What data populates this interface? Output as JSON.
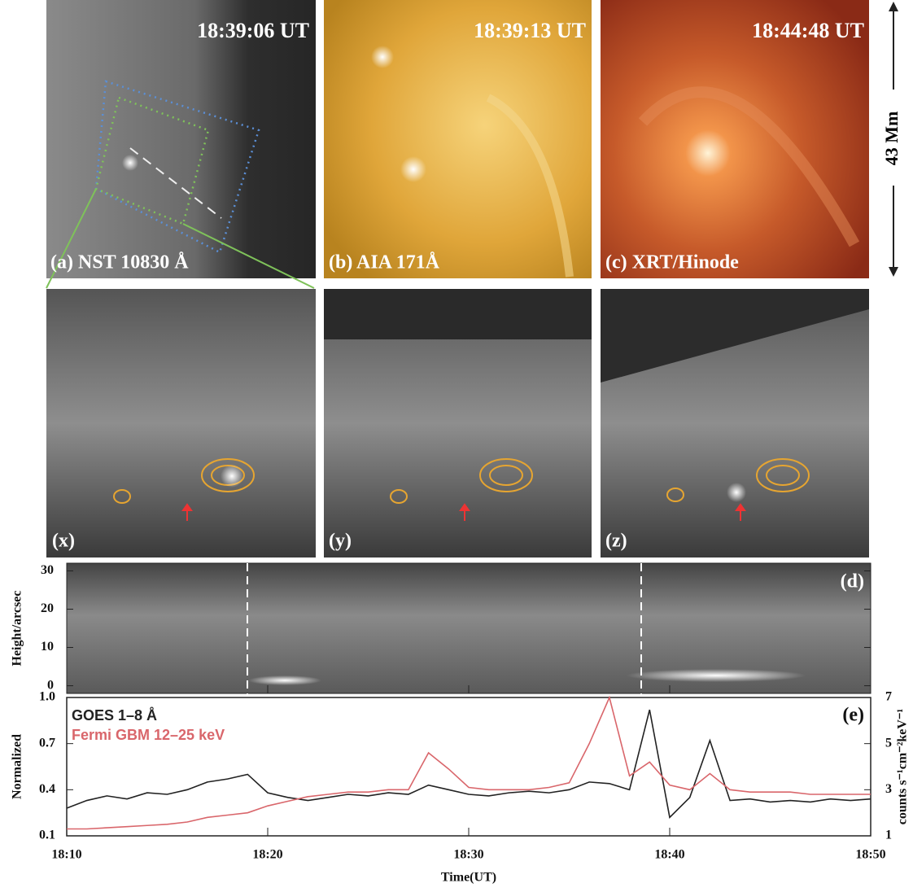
{
  "top_panels": [
    {
      "time": "18:39:06 UT",
      "label": "(a) NST 10830 Å"
    },
    {
      "time": "18:39:13 UT",
      "label": "(b) AIA 171Å"
    },
    {
      "time": "18:44:48 UT",
      "label": "(c) XRT/Hinode"
    }
  ],
  "scale_label": "43 Mm",
  "bottom_panels": [
    {
      "label": "(x)"
    },
    {
      "label": "(y)"
    },
    {
      "label": "(z)"
    }
  ],
  "panel_d": {
    "label": "(d)",
    "y_label": "Height/arcsec",
    "ylim": [
      -2,
      32
    ],
    "yticks": [
      0,
      10,
      20,
      30
    ]
  },
  "chart_data": {
    "type": "line",
    "label": "(e)",
    "x_label": "Time(UT)",
    "y_label": "Normalized",
    "y2_label": "counts s⁻¹cm⁻²keV⁻¹",
    "x": [
      "18:10",
      "18:11",
      "18:12",
      "18:13",
      "18:14",
      "18:15",
      "18:16",
      "18:17",
      "18:18",
      "18:19",
      "18:20",
      "18:21",
      "18:22",
      "18:23",
      "18:24",
      "18:25",
      "18:26",
      "18:27",
      "18:28",
      "18:29",
      "18:30",
      "18:31",
      "18:32",
      "18:33",
      "18:34",
      "18:35",
      "18:36",
      "18:37",
      "18:38",
      "18:39",
      "18:40",
      "18:41",
      "18:42",
      "18:43",
      "18:44",
      "18:45",
      "18:46",
      "18:47",
      "18:48",
      "18:49",
      "18:50"
    ],
    "xticks": [
      "18:10",
      "18:20",
      "18:30",
      "18:40",
      "18:50"
    ],
    "ylim": [
      0.1,
      1.0
    ],
    "yticks": [
      0.1,
      0.4,
      0.7,
      {
        "value": 1,
        "label": "1.0"
      }
    ],
    "y2lim": [
      1,
      7
    ],
    "y2ticks": [
      1,
      3,
      5,
      7
    ],
    "series": [
      {
        "name": "GOES 1–8 Å",
        "color": "#222222",
        "values": [
          0.28,
          0.33,
          0.36,
          0.34,
          0.38,
          0.37,
          0.4,
          0.45,
          0.47,
          0.5,
          0.38,
          0.35,
          0.33,
          0.35,
          0.37,
          0.36,
          0.38,
          0.37,
          0.43,
          0.4,
          0.37,
          0.36,
          0.38,
          0.39,
          0.38,
          0.4,
          0.45,
          0.44,
          0.4,
          0.92,
          0.22,
          0.35,
          0.72,
          0.33,
          0.34,
          0.32,
          0.33,
          0.32,
          0.34,
          0.33,
          0.34
        ]
      },
      {
        "name": "Fermi GBM 12–25 keV",
        "color": "#d9666b",
        "axis": "y2",
        "values": [
          1.3,
          1.3,
          1.35,
          1.4,
          1.45,
          1.5,
          1.6,
          1.8,
          1.9,
          2.0,
          2.3,
          2.5,
          2.7,
          2.8,
          2.9,
          2.9,
          3.0,
          3.0,
          4.6,
          3.9,
          3.1,
          3.0,
          3.0,
          3.0,
          3.1,
          3.3,
          5.0,
          7.0,
          3.6,
          4.2,
          3.2,
          3.0,
          3.7,
          3.0,
          2.9,
          2.9,
          2.9,
          2.8,
          2.8,
          2.8,
          2.8
        ]
      }
    ]
  }
}
